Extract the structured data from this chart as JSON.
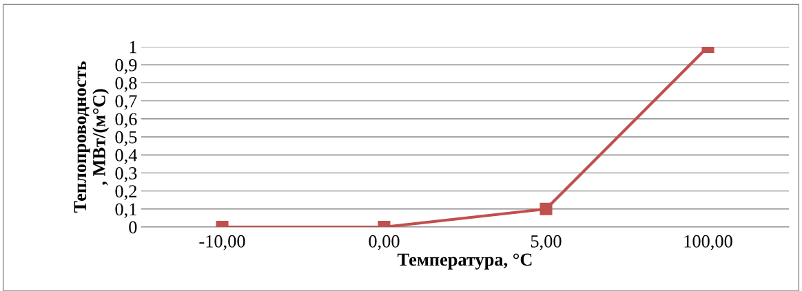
{
  "chart_data": {
    "type": "line",
    "xlabel": "Температура, °С",
    "ylabel": "Теплопроводность\n, МВт/(м°С)",
    "categories": [
      "-10,00",
      "0,00",
      "5,00",
      "100,00"
    ],
    "series": [
      {
        "color": "#c0504d",
        "values": [
          0,
          0,
          0.1,
          1
        ]
      }
    ],
    "ylim": [
      0,
      1
    ],
    "yticks": [
      0,
      {
        "value": 0.1,
        "label": "0,1"
      },
      {
        "value": 0.2,
        "label": "0,2"
      },
      {
        "value": 0.3,
        "label": "0,3"
      },
      {
        "value": 0.4,
        "label": "0,4"
      },
      {
        "value": 0.5,
        "label": "0,5"
      },
      {
        "value": 0.6,
        "label": "0,6"
      },
      {
        "value": 0.7,
        "label": "0,7"
      },
      {
        "value": 0.8,
        "label": "0,8"
      },
      {
        "value": 0.9,
        "label": "0,9"
      },
      1
    ],
    "grid": "y",
    "marker": "square",
    "line_style": "solid",
    "legend": false
  }
}
